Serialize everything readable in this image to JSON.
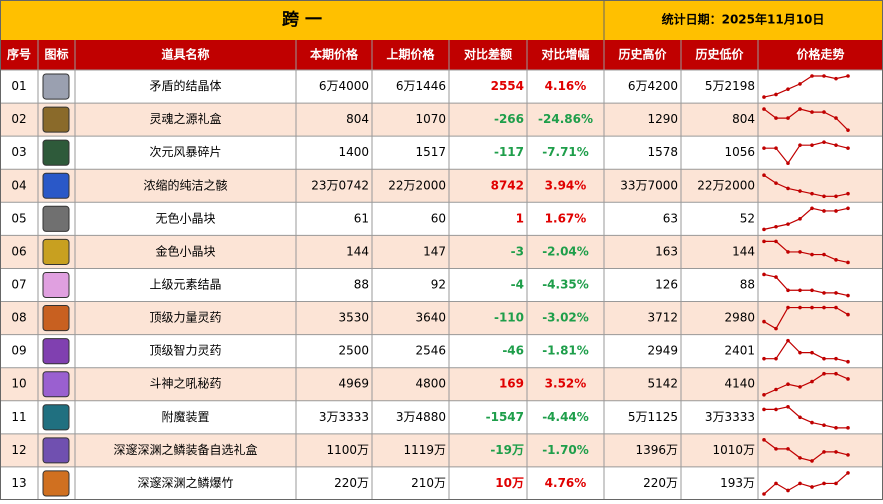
{
  "header": {
    "title": "跨 一",
    "date": "统计日期：2025年11月10日"
  },
  "table": {
    "columns": [
      "序号",
      "图标",
      "道具名称",
      "本期价格",
      "上期价格",
      "对比差额",
      "对比增幅",
      "历史高价",
      "历史低价",
      "价格走势"
    ],
    "rows": [
      [
        "01",
        "矛盾的结晶体",
        "6万4000",
        "6万1446",
        "2554",
        "4.16%",
        "6万4200",
        "5万2198"
      ],
      [
        "02",
        "灵魂之源礼盒",
        "804",
        "1070",
        "-266",
        "-24.86%",
        "1290",
        "804"
      ],
      [
        "03",
        "次元风暴碎片",
        "1400",
        "1517",
        "-117",
        "-7.71%",
        "1578",
        "1056"
      ],
      [
        "04",
        "浓缩的纯洁之骸",
        "23万0742",
        "22万2000",
        "8742",
        "3.94%",
        "33万7000",
        "22万2000"
      ],
      [
        "05",
        "无色小晶块",
        "61",
        "60",
        "1",
        "1.67%",
        "63",
        "52"
      ],
      [
        "06",
        "金色小晶块",
        "144",
        "147",
        "-3",
        "-2.04%",
        "163",
        "144"
      ],
      [
        "07",
        "上级元素结晶",
        "88",
        "92",
        "-4",
        "-4.35%",
        "126",
        "88"
      ],
      [
        "08",
        "顶级力量灵药",
        "3530",
        "3640",
        "-110",
        "-3.02%",
        "3712",
        "2980"
      ],
      [
        "09",
        "顶级智力灵药",
        "2500",
        "2546",
        "-46",
        "-1.81%",
        "2949",
        "2401"
      ],
      [
        "10",
        "斗神之吼秘药",
        "4969",
        "4800",
        "169",
        "3.52%",
        "5142",
        "4140"
      ],
      [
        "11",
        "附魔装置",
        "3万3333",
        "3万4880",
        "-1547",
        "-4.44%",
        "5万1125",
        "3万3333"
      ],
      [
        "12",
        "深邃深渊之鳞装备自选礼盒",
        "1100万",
        "1119万",
        "-19万",
        "-1.70%",
        "1396万",
        "1010万"
      ],
      [
        "13",
        "深邃深渊之鳞爆竹",
        "220万",
        "210万",
        "10万",
        "4.76%",
        "220万",
        "193万"
      ]
    ],
    "trends": [
      [
        1,
        2,
        4,
        6,
        9,
        9,
        8,
        9
      ],
      [
        9,
        6,
        6,
        9,
        8,
        8,
        6,
        2
      ],
      [
        6,
        6,
        1,
        7,
        7,
        8,
        7,
        6
      ],
      [
        9,
        6,
        4,
        3,
        2,
        1,
        1,
        2
      ],
      [
        1,
        2,
        3,
        5,
        9,
        8,
        8,
        9
      ],
      [
        9,
        9,
        5,
        5,
        4,
        4,
        2,
        1
      ],
      [
        9,
        8,
        3,
        3,
        3,
        2,
        2,
        1
      ],
      [
        4,
        2,
        8,
        8,
        8,
        8,
        8,
        6
      ],
      [
        3,
        3,
        9,
        5,
        5,
        3,
        3,
        2
      ],
      [
        1,
        3,
        5,
        4,
        6,
        9,
        9,
        7
      ],
      [
        8,
        8,
        9,
        5,
        3,
        2,
        1,
        1
      ],
      [
        8,
        5,
        5,
        2,
        1,
        4,
        4,
        3
      ],
      [
        3,
        6,
        4,
        6,
        5,
        6,
        6,
        9
      ]
    ]
  }
}
